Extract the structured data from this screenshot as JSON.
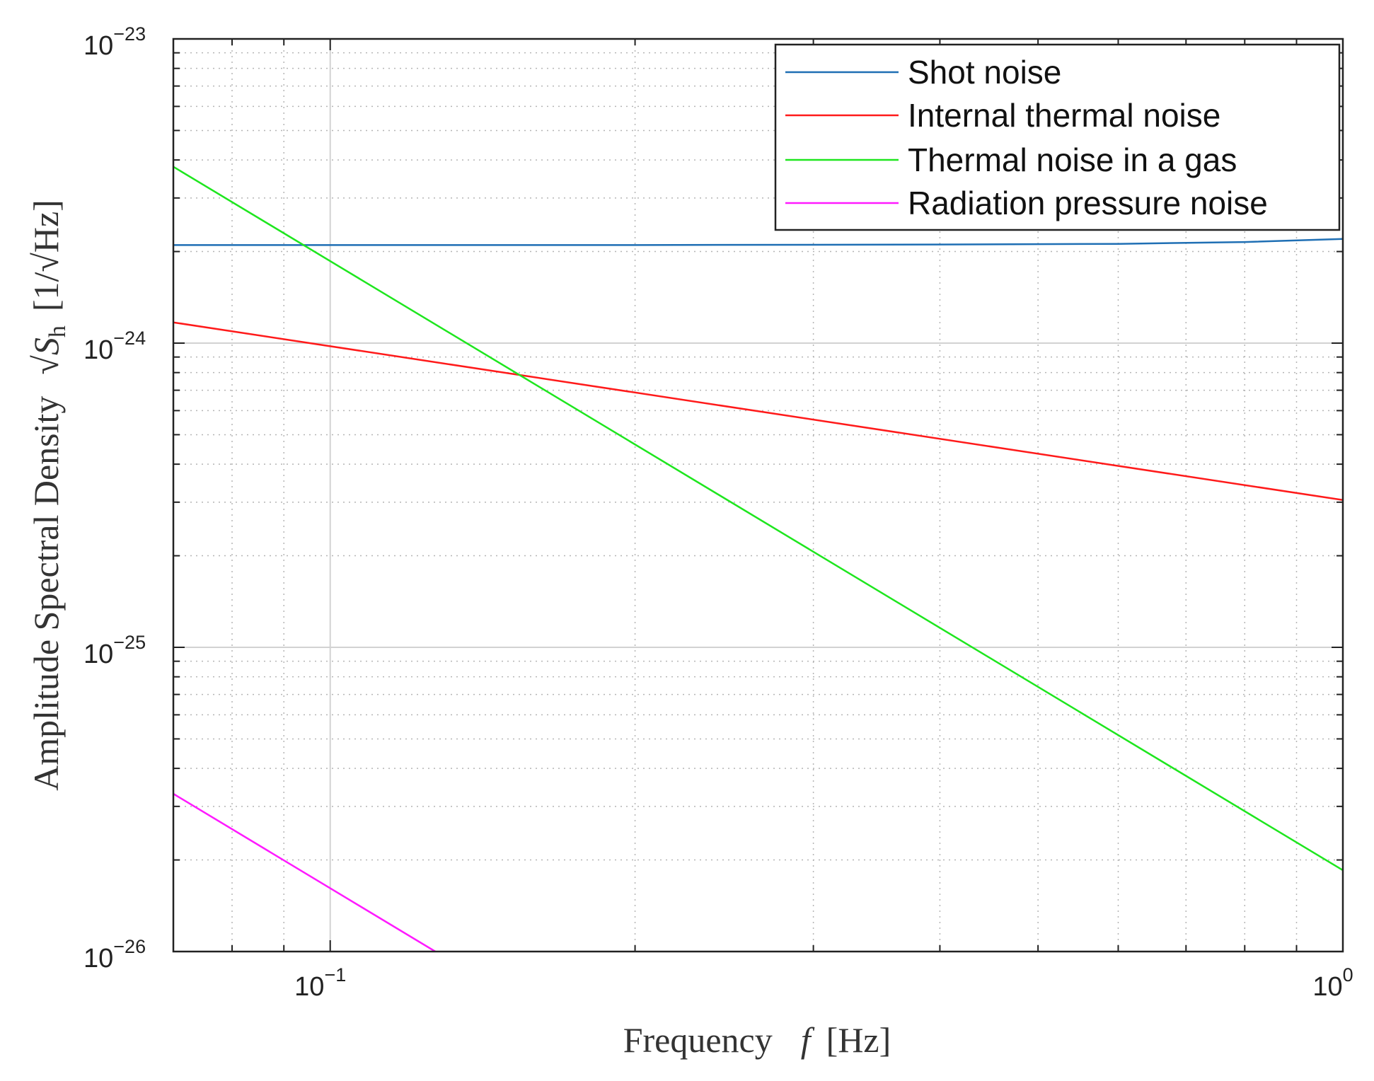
{
  "chart_data": {
    "type": "line",
    "xscale": "log",
    "yscale": "log",
    "xlim": [
      0.07,
      1.0
    ],
    "ylim": [
      1e-26,
      1e-23
    ],
    "grid": true,
    "legend_position": "top-right",
    "xlabel": {
      "text": "Frequency",
      "symbol": "f",
      "unit": "[Hz]"
    },
    "ylabel": {
      "text": "Amplitude Spectral Density",
      "symbol": "√S",
      "subscript": "h",
      "unit": "[1/√Hz]"
    },
    "x_ticks": [
      {
        "base": "10",
        "exp": "−1",
        "value": 0.1
      },
      {
        "base": "10",
        "exp": "0",
        "value": 1.0
      }
    ],
    "y_ticks": [
      {
        "base": "10",
        "exp": "−23",
        "value": 1e-23
      },
      {
        "base": "10",
        "exp": "−24",
        "value": 1e-24
      },
      {
        "base": "10",
        "exp": "−25",
        "value": 1e-25
      },
      {
        "base": "10",
        "exp": "−26",
        "value": 1e-26
      }
    ],
    "series": [
      {
        "name": "Shot noise",
        "color": "#1f6fb4",
        "points": [
          [
            0.07,
            2.1e-24
          ],
          [
            0.1,
            2.1e-24
          ],
          [
            0.2,
            2.1e-24
          ],
          [
            0.4,
            2.11e-24
          ],
          [
            0.6,
            2.12e-24
          ],
          [
            0.8,
            2.15e-24
          ],
          [
            1.0,
            2.2e-24
          ]
        ]
      },
      {
        "name": "Internal thermal noise",
        "color": "#ff1a1a",
        "points": [
          [
            0.07,
            1.17e-24
          ],
          [
            1.0,
            3.05e-25
          ]
        ]
      },
      {
        "name": "Thermal noise in a gas",
        "color": "#1ee61e",
        "points": [
          [
            0.07,
            3.8e-24
          ],
          [
            1.0,
            1.85e-26
          ]
        ]
      },
      {
        "name": "Radiation pressure noise",
        "color": "#ff1aff",
        "points": [
          [
            0.07,
            3.3e-26
          ],
          [
            0.127,
            1e-26
          ]
        ]
      }
    ]
  }
}
